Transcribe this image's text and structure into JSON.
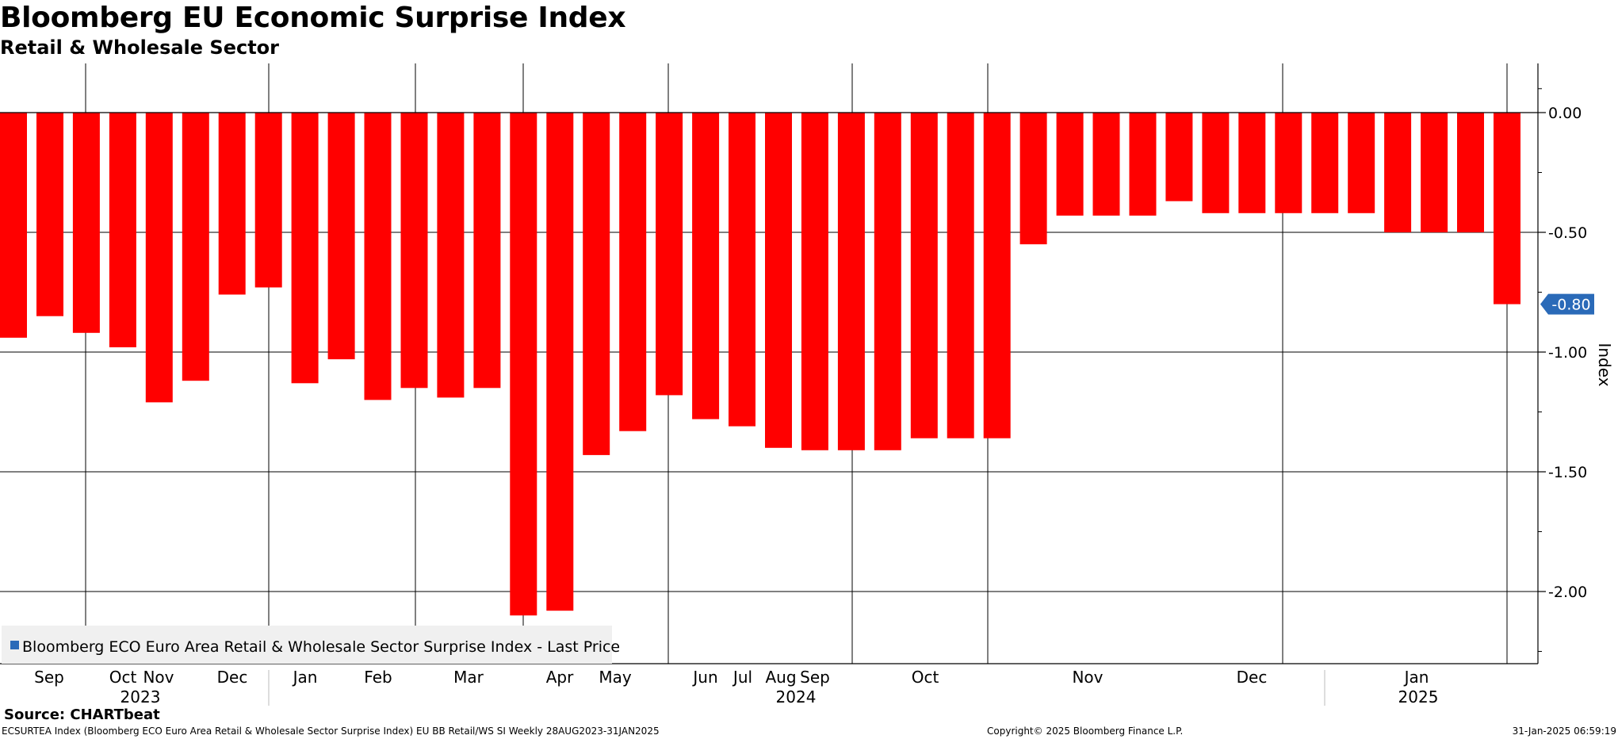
{
  "title": "Bloomberg EU Economic Surprise Index",
  "subtitle": "Retail & Wholesale Sector",
  "source": "Source: CHARTbeat",
  "footer": {
    "description": "ECSURTEA Index (Bloomberg ECO Euro Area Retail & Wholesale Sector Surprise Index) EU BB Retail/WS SI  Weekly 28AUG2023-31JAN2025",
    "copyright": "Copyright© 2025 Bloomberg Finance L.P.",
    "timestamp": "31-Jan-2025 06:59:19"
  },
  "colors": {
    "bar": "#ff0000",
    "last_price_badge": "#2a6ab8",
    "legend_marker": "#2a6ab8"
  },
  "chart_data": {
    "type": "bar",
    "ylabel": "Index",
    "ylim": [
      -2.25,
      0.2
    ],
    "yticks": [
      0.0,
      -0.5,
      -1.0,
      -1.5,
      -2.0
    ],
    "ytick_labels": [
      "0.00",
      "-0.50",
      "-1.00",
      "-1.50",
      "-2.00"
    ],
    "last_value_label": "-0.80",
    "legend": "Bloomberg ECO Euro Area Retail & Wholesale Sector Surprise Index - Last Price",
    "month_labels": [
      "Sep",
      "Oct",
      "Nov",
      "Dec",
      "Jan",
      "Feb",
      "Mar",
      "Apr",
      "May",
      "Jun",
      "Jul",
      "Aug",
      "Sep",
      "Oct",
      "Nov",
      "Dec",
      "Jan"
    ],
    "year_labels": [
      "2023",
      "2024",
      "2025"
    ],
    "values": [
      -0.94,
      -0.85,
      -0.92,
      -0.98,
      -1.21,
      -1.12,
      -0.76,
      -0.73,
      -1.13,
      -1.03,
      -1.2,
      -1.15,
      -1.19,
      -1.15,
      -2.1,
      -2.08,
      -1.43,
      -1.33,
      -1.18,
      -1.28,
      -1.31,
      -1.4,
      -1.41,
      -1.41,
      -1.41,
      -1.36,
      -1.36,
      -1.36,
      -0.55,
      -0.43,
      -0.43,
      -0.43,
      -0.37,
      -0.42,
      -0.42,
      -0.42,
      -0.42,
      -0.42,
      -0.5,
      -0.5,
      -0.5,
      -0.8
    ]
  }
}
